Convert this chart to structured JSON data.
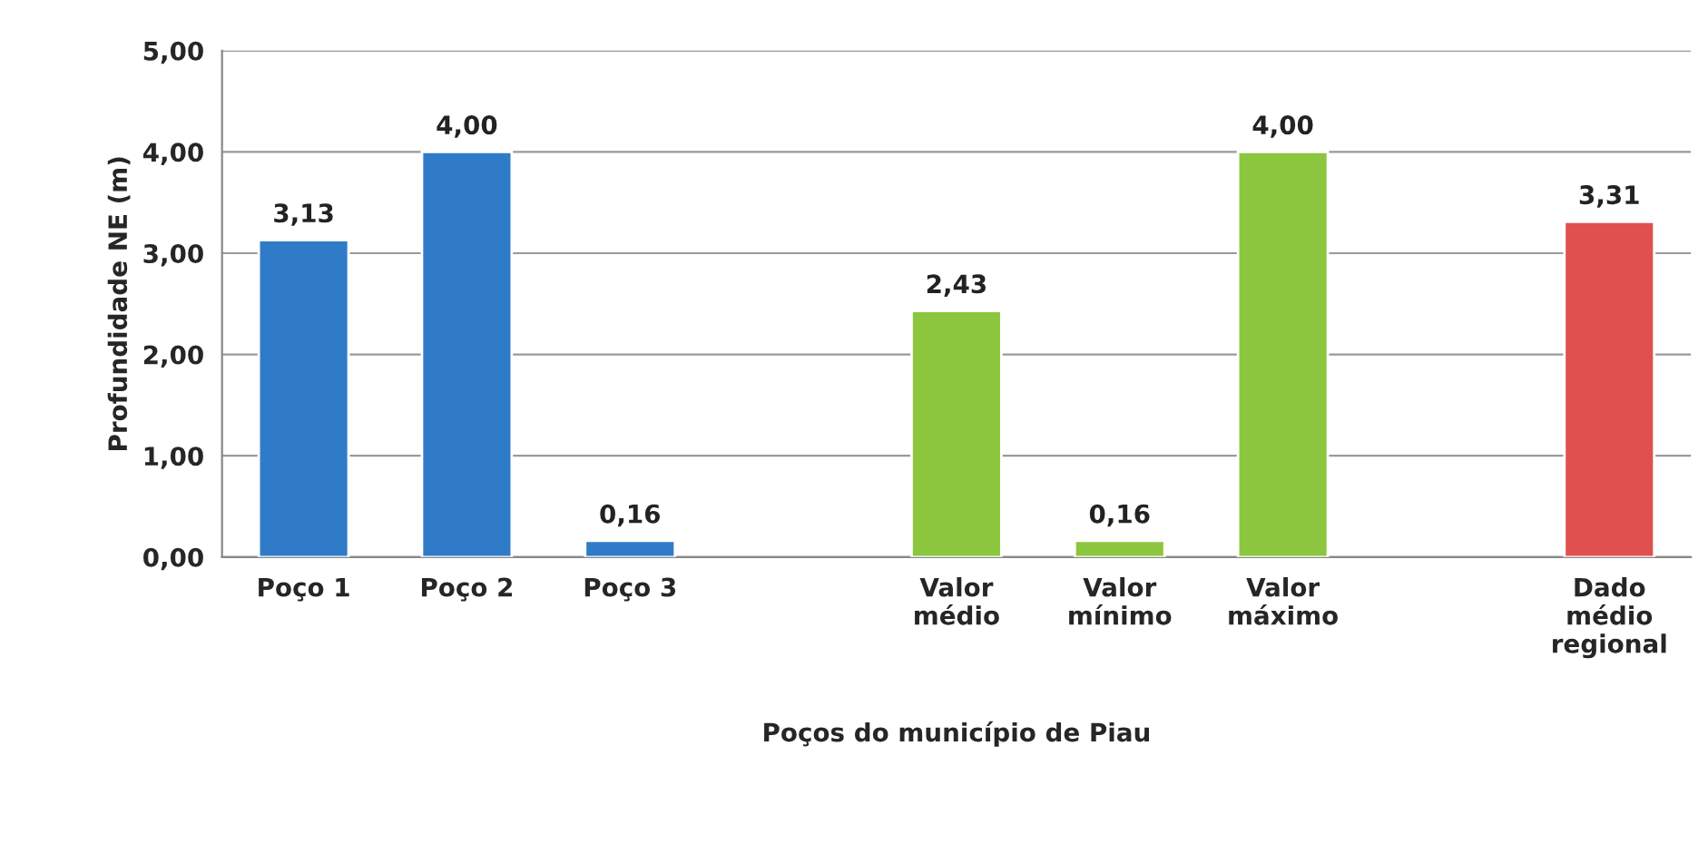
{
  "chart_data": {
    "type": "bar",
    "xlabel": "Poços do município de Piau",
    "ylabel": "Profundidade NE (m)",
    "categories": [
      "Poço 1",
      "Poço 2",
      "Poço 3",
      null,
      "Valor\nmédio",
      "Valor\nmínimo",
      "Valor\nmáximo",
      null,
      "Dado\nmédio\nregional"
    ],
    "values": [
      3.13,
      4.0,
      0.16,
      null,
      2.43,
      0.16,
      4.0,
      null,
      3.31
    ],
    "colors": [
      "#2f7bc8",
      "#2f7bc8",
      "#2f7bc8",
      null,
      "#8cc63e",
      "#8cc63e",
      "#8cc63e",
      null,
      "#e0504f"
    ],
    "value_labels": [
      "3,13",
      "4,00",
      "0,16",
      null,
      "2,43",
      "0,16",
      "4,00",
      null,
      "3,31"
    ],
    "ylim": [
      0,
      5
    ],
    "yticks": [
      {
        "value": 0,
        "label": "0,00"
      },
      {
        "value": 1,
        "label": "1,00"
      },
      {
        "value": 2,
        "label": "2,00"
      },
      {
        "value": 3,
        "label": "3,00"
      },
      {
        "value": 4,
        "label": "4,00"
      },
      {
        "value": 5,
        "label": "5,00"
      }
    ],
    "grid": "y",
    "legend": false
  }
}
